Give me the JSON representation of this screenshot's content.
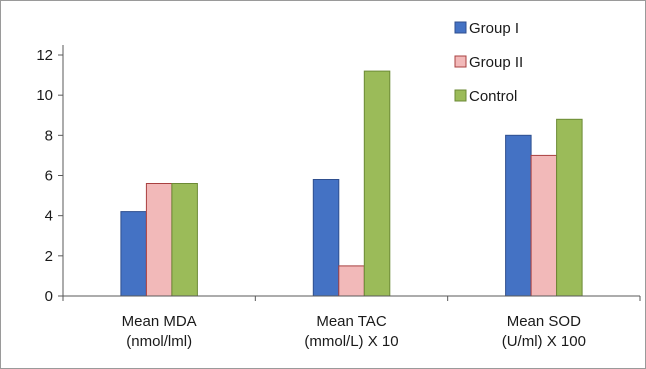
{
  "chart_data": {
    "type": "bar",
    "title": "",
    "xlabel": "",
    "ylabel": "",
    "categories": [
      [
        "Mean MDA",
        "(nmol/lml)"
      ],
      [
        "Mean TAC",
        "(mmol/L) X 10"
      ],
      [
        "Mean SOD",
        "(U/ml) X 100"
      ]
    ],
    "series": [
      {
        "name": "Group I",
        "values": [
          4.2,
          5.8,
          8.0
        ],
        "color": "#4472c4",
        "edge": "#2f4f8f"
      },
      {
        "name": "Group II",
        "values": [
          5.6,
          1.5,
          7.0
        ],
        "color": "#f2b9b9",
        "edge": "#a84040"
      },
      {
        "name": "Control",
        "values": [
          5.6,
          11.2,
          8.8
        ],
        "color": "#9bbb59",
        "edge": "#6b8a35"
      }
    ],
    "ylim": [
      0,
      12
    ],
    "yticks": [
      "0",
      "2",
      "4",
      "6",
      "8",
      "10",
      "12"
    ],
    "grid": false,
    "legend_position": "top-right",
    "colors": {
      "axis": "#595959",
      "frame": "#9a9a9a"
    }
  }
}
